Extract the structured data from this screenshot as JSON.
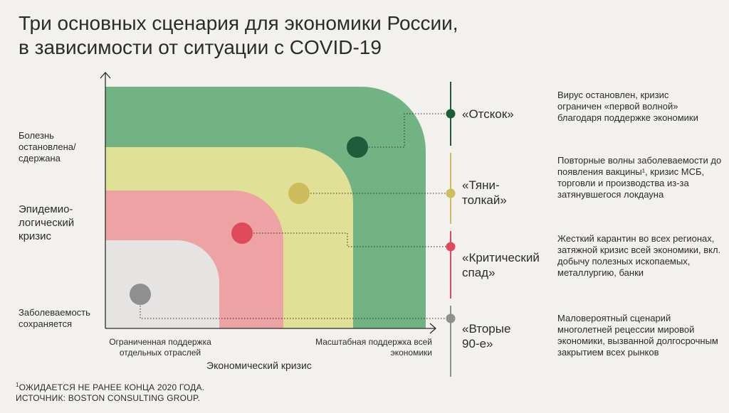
{
  "title": {
    "line1": "Три основных сценария для экономики России,",
    "line2": "в зависимости от ситуации с COVID-19"
  },
  "y_axis": {
    "top_label": "Болезнь остановлена/ сдержана",
    "middle_label": "Эпидемио- логический кризис",
    "bottom_label": "Заболеваемость сохраняется"
  },
  "x_axis": {
    "left_label": "Ограниченная поддержка отдельных отраслей",
    "right_label": "Масштабная поддержка всей экономики",
    "title": "Экономический кризис"
  },
  "scenarios": [
    {
      "name": "«Отскок»",
      "color": "#1e5c3c",
      "zone_color": "#72b383",
      "description": "Вирус остановлен, кризис ограничен «первой волной» благодаря поддержке экономики"
    },
    {
      "name": "«Тяни-толкай»",
      "color": "#cdbd5c",
      "zone_color": "#e0e096",
      "description": "Повторные волны заболеваемости до появления вакцины¹, кризис МСБ, торговли и производства из-за затянувшегося локдауна"
    },
    {
      "name": "«Критический спад»",
      "color": "#e04a5a",
      "zone_color": "#eda3a4",
      "description": "Жесткий карантин во всех регионах, затяжной кризис всей экономики, вкл. добычу полезных ископаемых, металлургию, банки"
    },
    {
      "name": "«Вторые 90-е»",
      "color": "#8f8f8f",
      "zone_color": "#e6e4e2",
      "description": "Маловероятный сценарий многолетней рецессии мировой экономики, вызванной долгосрочным закрытием всех рынков"
    }
  ],
  "footnote": {
    "note": "ОЖИДАЕТСЯ НЕ РАНЕЕ КОНЦА 2020 ГОДА.",
    "note_mark": "1",
    "source": "ИСТОЧНИК: BOSTON CONSULTING GROUP."
  }
}
